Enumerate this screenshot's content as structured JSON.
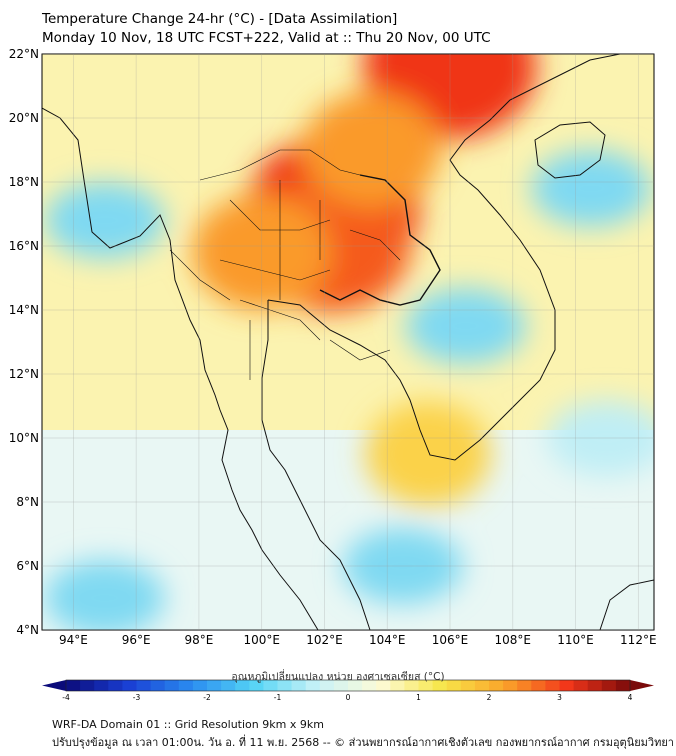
{
  "header": {
    "title": "Temperature Change 24-hr (°C) - [Data Assimilation]",
    "subtitle": "Monday 10 Nov, 18 UTC FCST+222, Valid at :: Thu 20 Nov, 00 UTC"
  },
  "map": {
    "lat_labels": [
      "22°N",
      "20°N",
      "18°N",
      "16°N",
      "14°N",
      "12°N",
      "10°N",
      "8°N",
      "6°N",
      "4°N"
    ],
    "lon_labels": [
      "94°E",
      "96°E",
      "98°E",
      "100°E",
      "102°E",
      "104°E",
      "106°E",
      "108°E",
      "110°E",
      "112°E"
    ],
    "lat_range": [
      4,
      22
    ],
    "lon_range": [
      93,
      112.5
    ],
    "warm_anomalies": [
      {
        "lon": 106.0,
        "lat": 21.6,
        "level": 3
      },
      {
        "lon": 102.3,
        "lat": 17.2,
        "level": 3
      },
      {
        "lon": 102.2,
        "lat": 16.0,
        "level": 2.6
      },
      {
        "lon": 100.0,
        "lat": 15.8,
        "level": 2
      },
      {
        "lon": 103.5,
        "lat": 19.0,
        "level": 2
      },
      {
        "lon": 105.3,
        "lat": 9.5,
        "level": 1.6
      }
    ],
    "cold_anomalies": [
      {
        "lon": 95.0,
        "lat": 16.8,
        "level": -1
      },
      {
        "lon": 106.5,
        "lat": 13.5,
        "level": -1
      },
      {
        "lon": 110.5,
        "lat": 17.8,
        "level": -1
      },
      {
        "lon": 104.5,
        "lat": 6.0,
        "level": -1
      },
      {
        "lon": 95.0,
        "lat": 5.0,
        "level": -1.1
      },
      {
        "lon": 111.0,
        "lat": 10.0,
        "level": -0.8
      }
    ]
  },
  "colorbar": {
    "title": "อุณหภูมิเปลี่ยนแปลง หน่วย องศาเซลเซียส (°C)",
    "ticks": [
      "-4",
      "-3",
      "-2",
      "-1",
      "0",
      "1",
      "2",
      "3",
      "4"
    ],
    "range": [
      -4,
      4
    ],
    "colors": [
      "#0b0b7a",
      "#1a3fd4",
      "#2a8cf0",
      "#55d4f5",
      "#c8f2f7",
      "#fdfbd8",
      "#f7e64a",
      "#fba42a",
      "#f2361a",
      "#7a0a0a"
    ]
  },
  "footer": {
    "line1": "WRF-DA Domain 01 :: Grid Resolution 9km x 9km",
    "line2": "ปรับปรุงข้อมูล ณ เวลา 01:00น. วัน อ. ที่ 11 พ.ย. 2568 -- © ส่วนพยากรณ์อากาศเชิงตัวเลข กองพยากรณ์อากาศ กรมอุตุนิยมวิทยา"
  }
}
